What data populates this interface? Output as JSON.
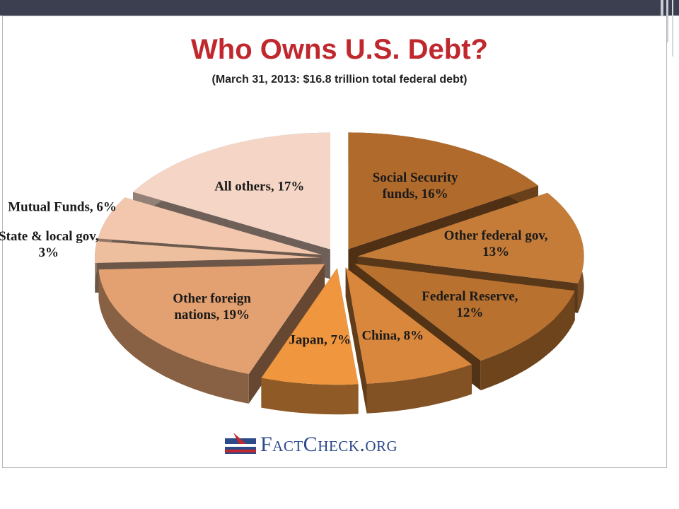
{
  "chart_data": {
    "type": "pie",
    "title": "Who Owns U.S. Debt?",
    "subtitle": "(March 31, 2013: $16.8 trillion total federal debt)",
    "categories": [
      "Social Security funds, 16%",
      "Other federal gov, 13%",
      "Federal Reserve, 12%",
      "China, 8%",
      "Japan, 7%",
      "Other foreign nations, 19%",
      "State & local gov, 3%",
      "Mutual Funds, 6%",
      "All others, 17%"
    ],
    "values": [
      16,
      13,
      12,
      8,
      7,
      19,
      3,
      6,
      17
    ],
    "colors": [
      "#b06a2c",
      "#c47c38",
      "#b8712e",
      "#d9873c",
      "#ef963e",
      "#e3a070",
      "#eebf9e",
      "#f3c7ad",
      "#f5d6c6"
    ],
    "logo": "FactCheck.org"
  }
}
